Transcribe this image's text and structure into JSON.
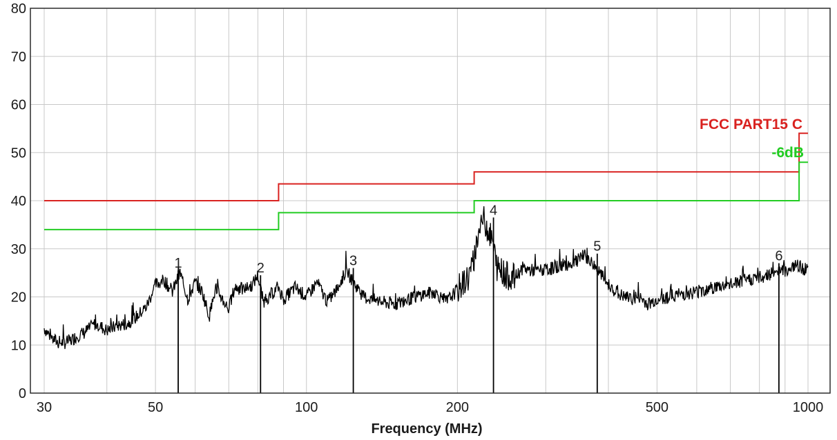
{
  "chart_data": {
    "type": "line",
    "title": "",
    "xlabel": "Frequency (MHz)",
    "ylabel": "",
    "x_scale": "log",
    "xlim": [
      30,
      1000
    ],
    "ylim": [
      0,
      80
    ],
    "x_ticks": [
      30,
      50,
      100,
      200,
      500,
      1000
    ],
    "x_tick_labels": [
      "30",
      "50",
      "100",
      "200",
      "500",
      "1000"
    ],
    "y_ticks": [
      0,
      10,
      20,
      30,
      40,
      50,
      60,
      70,
      80
    ],
    "y_tick_labels": [
      "0",
      "10",
      "20",
      "30",
      "40",
      "50",
      "60",
      "70",
      "80"
    ],
    "x_grid_minor": [
      40,
      60,
      70,
      80,
      90,
      300,
      400,
      600,
      700,
      800,
      900
    ],
    "grid": true,
    "legend_position": "top-right",
    "limit_lines": [
      {
        "name": "FCC PART15 C",
        "color": "#d9211f",
        "steps": [
          {
            "from": 30,
            "to": 88,
            "value": 40.0
          },
          {
            "from": 88,
            "to": 216,
            "value": 43.5
          },
          {
            "from": 216,
            "to": 960,
            "value": 46.0
          },
          {
            "from": 960,
            "to": 1000,
            "value": 54.0
          }
        ]
      },
      {
        "name": "-6dB",
        "color": "#22cc22",
        "steps": [
          {
            "from": 30,
            "to": 88,
            "value": 34.0
          },
          {
            "from": 88,
            "to": 216,
            "value": 37.5
          },
          {
            "from": 216,
            "to": 960,
            "value": 40.0
          },
          {
            "from": 960,
            "to": 1000,
            "value": 48.0
          }
        ]
      }
    ],
    "series": [
      {
        "color": "#000000",
        "x": [
          30,
          31,
          32,
          33,
          34,
          35,
          36,
          37,
          38,
          40,
          42,
          44,
          46,
          48,
          50,
          52,
          54,
          56,
          58,
          60,
          62,
          64,
          66,
          68,
          70,
          72,
          75,
          78,
          80,
          82,
          85,
          88,
          90,
          95,
          100,
          105,
          110,
          115,
          120,
          125,
          130,
          140,
          150,
          160,
          170,
          180,
          190,
          200,
          210,
          215,
          220,
          225,
          230,
          235,
          240,
          250,
          260,
          270,
          280,
          300,
          320,
          340,
          360,
          375,
          400,
          420,
          440,
          460,
          480,
          500,
          550,
          600,
          650,
          700,
          750,
          800,
          850,
          880,
          900,
          950,
          1000
        ],
        "values": [
          13.5,
          11.5,
          10.5,
          10.5,
          11.0,
          12.0,
          12.5,
          13.5,
          14.5,
          13.0,
          14.0,
          14.5,
          16.0,
          18.0,
          22.5,
          23.5,
          21.0,
          25.0,
          19.5,
          23.0,
          21.0,
          16.0,
          22.0,
          19.5,
          17.5,
          22.0,
          21.5,
          22.5,
          24.5,
          19.0,
          20.5,
          22.0,
          19.5,
          22.0,
          20.0,
          23.0,
          19.0,
          21.5,
          25.5,
          22.5,
          20.0,
          19.0,
          18.5,
          19.5,
          20.5,
          21.0,
          19.0,
          21.5,
          24.0,
          27.0,
          33.0,
          36.5,
          34.0,
          31.5,
          26.0,
          24.5,
          24.0,
          26.0,
          25.5,
          25.5,
          26.5,
          27.0,
          28.5,
          26.5,
          22.5,
          20.5,
          19.5,
          20.0,
          18.5,
          19.5,
          20.5,
          21.0,
          22.0,
          22.5,
          23.5,
          24.0,
          25.0,
          26.0,
          25.5,
          26.5,
          25.5
        ]
      }
    ],
    "markers": [
      {
        "label": "1",
        "x": 55.5,
        "value": 25.5
      },
      {
        "label": "2",
        "x": 81.0,
        "value": 24.5
      },
      {
        "label": "3",
        "x": 124.0,
        "value": 26.0
      },
      {
        "label": "4",
        "x": 236.0,
        "value": 36.5
      },
      {
        "label": "5",
        "x": 380.0,
        "value": 29.0
      },
      {
        "label": "6",
        "x": 875.0,
        "value": 27.0
      }
    ]
  }
}
